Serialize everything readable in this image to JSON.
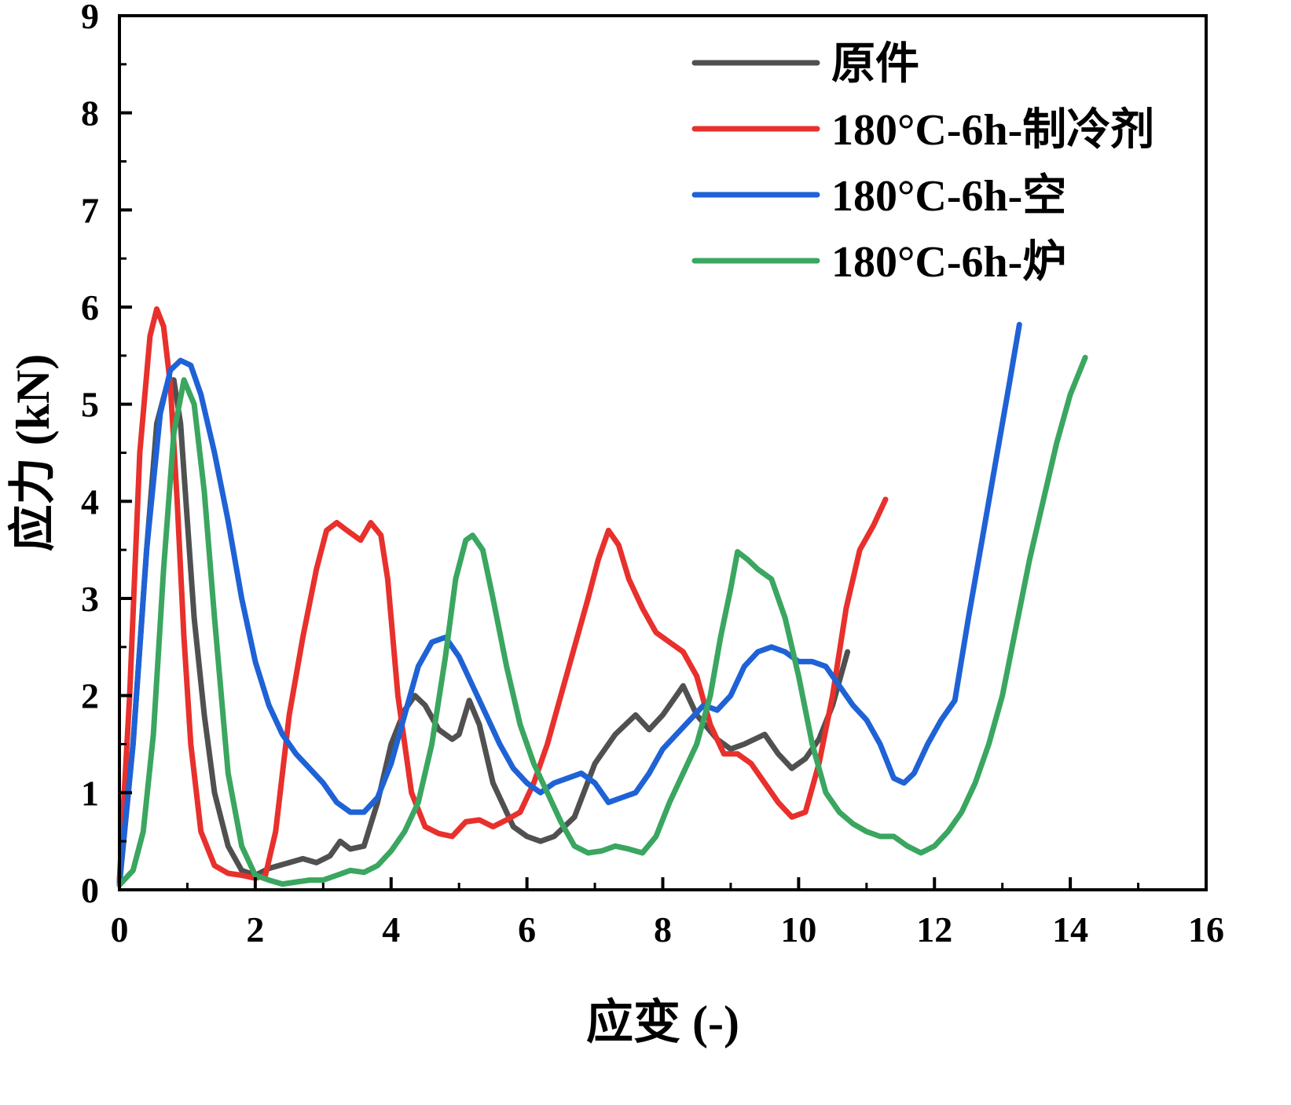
{
  "chart_data": {
    "type": "line",
    "xlabel": "应变 (-)",
    "ylabel": "应力 (kN)",
    "xlim": [
      0,
      16
    ],
    "ylim": [
      0,
      9
    ],
    "xticks": [
      "0",
      "2",
      "4",
      "6",
      "8",
      "10",
      "12",
      "14",
      "16"
    ],
    "yticks": [
      "0",
      "1",
      "2",
      "3",
      "4",
      "5",
      "6",
      "7",
      "8",
      "9"
    ],
    "grid": false,
    "legend_position": "top-right",
    "series": [
      {
        "name": "原件",
        "color": "#505050",
        "x": [
          0,
          0.2,
          0.4,
          0.55,
          0.7,
          0.8,
          0.9,
          1.0,
          1.1,
          1.25,
          1.4,
          1.6,
          1.8,
          2.0,
          2.2,
          2.5,
          2.7,
          2.9,
          3.1,
          3.25,
          3.4,
          3.6,
          3.8,
          4.0,
          4.2,
          4.35,
          4.5,
          4.7,
          4.9,
          5.0,
          5.15,
          5.3,
          5.5,
          5.8,
          6.0,
          6.2,
          6.4,
          6.7,
          7.0,
          7.3,
          7.6,
          7.8,
          8.0,
          8.2,
          8.3,
          8.5,
          8.8,
          9.0,
          9.2,
          9.5,
          9.7,
          9.9,
          10.1,
          10.3,
          10.5,
          10.72
        ],
        "y": [
          0.05,
          1.5,
          3.5,
          4.8,
          5.2,
          5.25,
          4.8,
          3.8,
          2.8,
          1.8,
          1.0,
          0.45,
          0.2,
          0.15,
          0.22,
          0.28,
          0.32,
          0.28,
          0.35,
          0.5,
          0.42,
          0.45,
          0.9,
          1.5,
          1.85,
          2.0,
          1.9,
          1.65,
          1.55,
          1.6,
          1.95,
          1.7,
          1.1,
          0.65,
          0.55,
          0.5,
          0.55,
          0.75,
          1.3,
          1.6,
          1.8,
          1.65,
          1.8,
          2.0,
          2.1,
          1.8,
          1.55,
          1.45,
          1.5,
          1.6,
          1.4,
          1.25,
          1.35,
          1.55,
          1.9,
          2.45
        ]
      },
      {
        "name": "180°C-6h-制冷剂",
        "color": "#e8302c",
        "x": [
          0,
          0.15,
          0.3,
          0.45,
          0.55,
          0.65,
          0.75,
          0.85,
          0.95,
          1.05,
          1.2,
          1.4,
          1.6,
          1.8,
          2.0,
          2.15,
          2.3,
          2.5,
          2.7,
          2.9,
          3.05,
          3.2,
          3.35,
          3.55,
          3.7,
          3.85,
          3.95,
          4.1,
          4.3,
          4.5,
          4.7,
          4.9,
          5.1,
          5.3,
          5.5,
          5.7,
          5.9,
          6.1,
          6.3,
          6.5,
          6.7,
          6.9,
          7.05,
          7.2,
          7.35,
          7.5,
          7.7,
          7.9,
          8.1,
          8.3,
          8.5,
          8.7,
          8.9,
          9.1,
          9.3,
          9.5,
          9.7,
          9.9,
          10.1,
          10.3,
          10.5,
          10.7,
          10.9,
          11.1,
          11.28
        ],
        "y": [
          0.1,
          2.0,
          4.5,
          5.7,
          5.98,
          5.8,
          5.2,
          4.0,
          2.6,
          1.5,
          0.6,
          0.25,
          0.17,
          0.15,
          0.12,
          0.15,
          0.6,
          1.8,
          2.6,
          3.3,
          3.7,
          3.78,
          3.7,
          3.6,
          3.78,
          3.65,
          3.2,
          2.0,
          1.0,
          0.65,
          0.58,
          0.55,
          0.7,
          0.72,
          0.65,
          0.72,
          0.8,
          1.1,
          1.5,
          2.0,
          2.5,
          3.0,
          3.4,
          3.7,
          3.55,
          3.2,
          2.9,
          2.65,
          2.55,
          2.45,
          2.2,
          1.7,
          1.4,
          1.4,
          1.3,
          1.1,
          0.9,
          0.75,
          0.8,
          1.3,
          2.0,
          2.9,
          3.5,
          3.75,
          4.02
        ]
      },
      {
        "name": "180°C-6h-空",
        "color": "#1f62d6",
        "x": [
          0,
          0.2,
          0.4,
          0.6,
          0.75,
          0.9,
          1.05,
          1.2,
          1.4,
          1.6,
          1.8,
          2.0,
          2.2,
          2.4,
          2.6,
          2.8,
          3.0,
          3.2,
          3.4,
          3.6,
          3.8,
          4.0,
          4.2,
          4.4,
          4.6,
          4.8,
          5.0,
          5.2,
          5.4,
          5.6,
          5.8,
          6.0,
          6.2,
          6.4,
          6.6,
          6.8,
          7.0,
          7.2,
          7.4,
          7.6,
          7.8,
          8.0,
          8.2,
          8.4,
          8.6,
          8.8,
          9.0,
          9.2,
          9.4,
          9.6,
          9.8,
          10.0,
          10.2,
          10.4,
          10.6,
          10.8,
          11.0,
          11.2,
          11.4,
          11.55,
          11.7,
          11.9,
          12.1,
          12.3,
          12.5,
          12.7,
          12.9,
          13.1,
          13.25
        ],
        "y": [
          0.08,
          1.5,
          3.5,
          4.9,
          5.35,
          5.45,
          5.4,
          5.1,
          4.5,
          3.8,
          3.0,
          2.35,
          1.9,
          1.6,
          1.4,
          1.25,
          1.1,
          0.9,
          0.8,
          0.8,
          0.95,
          1.3,
          1.8,
          2.3,
          2.55,
          2.6,
          2.4,
          2.1,
          1.8,
          1.5,
          1.25,
          1.1,
          1.0,
          1.1,
          1.15,
          1.2,
          1.1,
          0.9,
          0.95,
          1.0,
          1.2,
          1.45,
          1.6,
          1.75,
          1.9,
          1.85,
          2.0,
          2.3,
          2.45,
          2.5,
          2.45,
          2.35,
          2.35,
          2.3,
          2.1,
          1.9,
          1.75,
          1.5,
          1.15,
          1.1,
          1.2,
          1.5,
          1.75,
          1.95,
          2.8,
          3.6,
          4.4,
          5.2,
          5.82
        ]
      },
      {
        "name": "180°C-6h-炉",
        "color": "#3aa660",
        "x": [
          0,
          0.2,
          0.35,
          0.5,
          0.65,
          0.8,
          0.95,
          1.1,
          1.25,
          1.4,
          1.6,
          1.8,
          2.0,
          2.2,
          2.4,
          2.6,
          2.8,
          3.0,
          3.2,
          3.4,
          3.6,
          3.8,
          4.0,
          4.2,
          4.4,
          4.6,
          4.8,
          4.95,
          5.1,
          5.2,
          5.35,
          5.5,
          5.7,
          5.9,
          6.1,
          6.3,
          6.5,
          6.7,
          6.9,
          7.1,
          7.3,
          7.5,
          7.7,
          7.9,
          8.1,
          8.3,
          8.5,
          8.7,
          8.85,
          9.0,
          9.1,
          9.25,
          9.4,
          9.6,
          9.8,
          10.0,
          10.2,
          10.4,
          10.6,
          10.8,
          11.0,
          11.2,
          11.4,
          11.6,
          11.8,
          12.0,
          12.2,
          12.4,
          12.6,
          12.8,
          13.0,
          13.2,
          13.4,
          13.6,
          13.8,
          14.0,
          14.22
        ],
        "y": [
          0.05,
          0.2,
          0.6,
          1.6,
          3.3,
          4.7,
          5.25,
          5.0,
          4.1,
          2.8,
          1.2,
          0.45,
          0.15,
          0.1,
          0.06,
          0.08,
          0.1,
          0.1,
          0.15,
          0.2,
          0.18,
          0.25,
          0.4,
          0.6,
          0.9,
          1.5,
          2.4,
          3.2,
          3.6,
          3.65,
          3.5,
          3.0,
          2.3,
          1.7,
          1.3,
          1.0,
          0.7,
          0.45,
          0.38,
          0.4,
          0.45,
          0.42,
          0.38,
          0.55,
          0.9,
          1.2,
          1.5,
          2.0,
          2.6,
          3.1,
          3.48,
          3.4,
          3.3,
          3.2,
          2.8,
          2.2,
          1.5,
          1.0,
          0.8,
          0.68,
          0.6,
          0.55,
          0.55,
          0.45,
          0.38,
          0.45,
          0.6,
          0.8,
          1.1,
          1.5,
          2.0,
          2.7,
          3.4,
          4.0,
          4.6,
          5.1,
          5.48
        ]
      }
    ]
  }
}
